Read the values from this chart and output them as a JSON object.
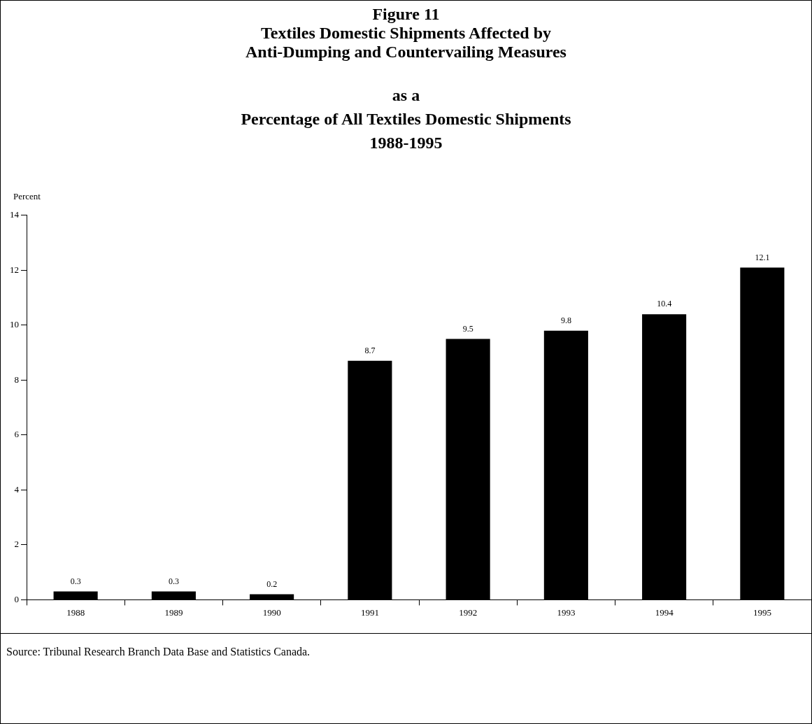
{
  "chart_data": {
    "type": "bar",
    "title": "Figure 11\nTextiles Domestic Shipments Affected by\nAnti-Dumping and Countervailing Measures",
    "subtitle": "as a\nPercentage of All Textiles Domestic Shipments\n1988-1995",
    "ylabel": "Percent",
    "categories": [
      "1988",
      "1989",
      "1990",
      "1991",
      "1992",
      "1993",
      "1994",
      "1995"
    ],
    "values": [
      0.3,
      0.3,
      0.2,
      8.7,
      9.5,
      9.8,
      10.4,
      12.1
    ],
    "color": "#000000",
    "ylim": [
      0,
      14
    ],
    "yticks": [
      0,
      2,
      4,
      6,
      8,
      10,
      12,
      14
    ],
    "grid": false,
    "data_labels": true,
    "annotations": [
      "Source:  Tribunal Research Branch Data Base and Statistics Canada."
    ]
  }
}
